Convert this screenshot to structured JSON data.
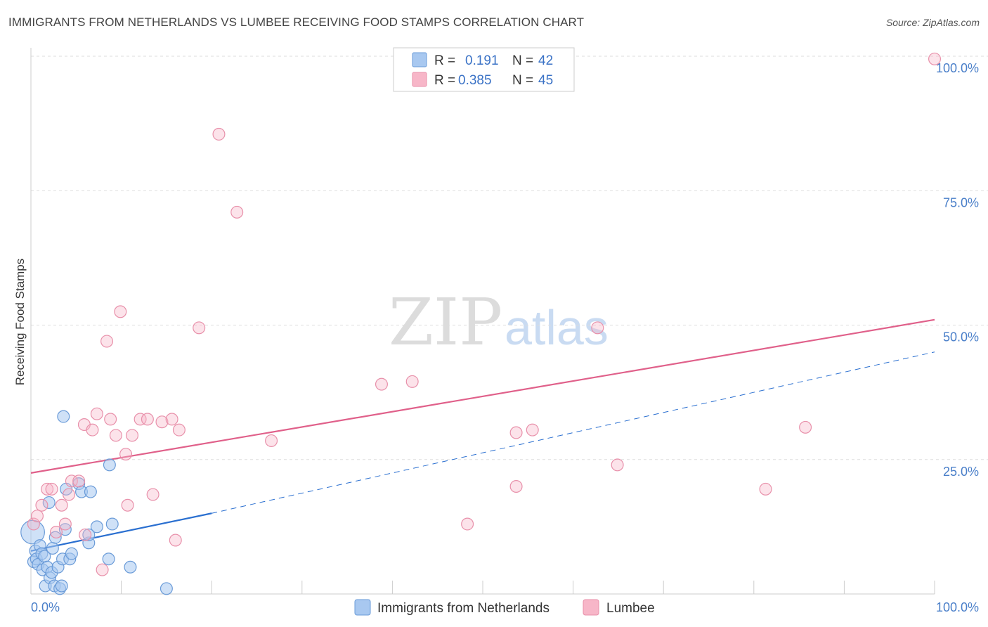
{
  "header": {
    "title": "IMMIGRANTS FROM NETHERLANDS VS LUMBEE RECEIVING FOOD STAMPS CORRELATION CHART",
    "source": "Source: ZipAtlas.com"
  },
  "watermark": {
    "zip": "ZIP",
    "atlas": "atlas"
  },
  "colors": {
    "blue_fill": "#a8c8f0",
    "blue_stroke": "#6a9bd8",
    "blue_line": "#2a6fd0",
    "pink_fill": "#f7b6c8",
    "pink_stroke": "#e890aa",
    "pink_line": "#e0608a",
    "grid": "#dddddd",
    "tick_text": "#4a7fc9"
  },
  "legend": {
    "rows": [
      {
        "r_label": "R =",
        "r_value": "0.191",
        "n_label": "N =",
        "n_value": "42",
        "series": "blue"
      },
      {
        "r_label": "R =",
        "r_value": "0.385",
        "n_label": "N =",
        "n_value": "45",
        "series": "pink"
      }
    ]
  },
  "chart_data": {
    "type": "scatter",
    "title": "IMMIGRANTS FROM NETHERLANDS VS LUMBEE RECEIVING FOOD STAMPS CORRELATION CHART",
    "xlabel": "",
    "ylabel": "Receiving Food Stamps",
    "xlim": [
      0,
      100
    ],
    "ylim": [
      0,
      100
    ],
    "x_tick_labels": [
      "0.0%",
      "100.0%"
    ],
    "y_ticks": [
      25,
      50,
      75,
      100
    ],
    "y_tick_labels": [
      "25.0%",
      "50.0%",
      "75.0%",
      "100.0%"
    ],
    "x_grid_ticks": [
      0,
      10,
      20,
      30,
      40,
      50,
      60,
      70,
      80,
      90,
      100
    ],
    "series": [
      {
        "name": "Immigrants from Netherlands",
        "color": "blue",
        "R": 0.191,
        "N": 42,
        "trend": {
          "x0": 0,
          "y0": 8.0,
          "x1": 20,
          "y1": 15.0,
          "dashed_to_x": 100,
          "dashed_to_y": 45.0
        },
        "points": [
          [
            0.2,
            11.5,
            24
          ],
          [
            0.3,
            6.0,
            12
          ],
          [
            0.5,
            8.0,
            12
          ],
          [
            0.6,
            6.5,
            12
          ],
          [
            0.8,
            5.5,
            12
          ],
          [
            1.0,
            9.0,
            12
          ],
          [
            1.2,
            7.5,
            12
          ],
          [
            1.3,
            4.5,
            12
          ],
          [
            1.5,
            7.0,
            12
          ],
          [
            1.6,
            1.5,
            12
          ],
          [
            1.8,
            5.0,
            12
          ],
          [
            2.0,
            17.0,
            12
          ],
          [
            2.1,
            3.0,
            12
          ],
          [
            2.3,
            4.0,
            12
          ],
          [
            2.4,
            8.5,
            12
          ],
          [
            2.6,
            1.5,
            12
          ],
          [
            2.7,
            10.5,
            12
          ],
          [
            3.0,
            5.0,
            12
          ],
          [
            3.2,
            1.0,
            12
          ],
          [
            3.4,
            1.5,
            12
          ],
          [
            3.5,
            6.5,
            12
          ],
          [
            3.6,
            33.0,
            12
          ],
          [
            3.8,
            12.0,
            12
          ],
          [
            3.9,
            19.5,
            12
          ],
          [
            4.3,
            6.5,
            12
          ],
          [
            4.5,
            7.5,
            12
          ],
          [
            5.3,
            20.5,
            12
          ],
          [
            5.6,
            19.0,
            12
          ],
          [
            6.4,
            9.5,
            12
          ],
          [
            6.6,
            19.0,
            12
          ],
          [
            7.3,
            12.5,
            12
          ],
          [
            8.6,
            6.5,
            12
          ],
          [
            8.7,
            24.0,
            12
          ],
          [
            9.0,
            13.0,
            12
          ],
          [
            11.0,
            5.0,
            12
          ],
          [
            15.0,
            1.0,
            12
          ],
          [
            6.4,
            11.0,
            12
          ]
        ]
      },
      {
        "name": "Lumbee",
        "color": "pink",
        "R": 0.385,
        "N": 45,
        "trend": {
          "x0": 0,
          "y0": 22.5,
          "x1": 100,
          "y1": 51.0
        },
        "points": [
          [
            0.3,
            13.0,
            12
          ],
          [
            0.7,
            14.5,
            12
          ],
          [
            1.2,
            16.5,
            12
          ],
          [
            1.8,
            19.5,
            12
          ],
          [
            2.3,
            19.5,
            12
          ],
          [
            2.8,
            11.5,
            12
          ],
          [
            3.4,
            16.5,
            12
          ],
          [
            3.8,
            13.0,
            12
          ],
          [
            4.2,
            18.5,
            12
          ],
          [
            4.5,
            21.0,
            12
          ],
          [
            5.3,
            21.0,
            12
          ],
          [
            5.9,
            31.5,
            12
          ],
          [
            6.0,
            11.0,
            12
          ],
          [
            6.8,
            30.5,
            12
          ],
          [
            7.3,
            33.5,
            12
          ],
          [
            7.9,
            4.5,
            12
          ],
          [
            8.4,
            47.0,
            12
          ],
          [
            8.8,
            32.5,
            12
          ],
          [
            9.4,
            29.5,
            12
          ],
          [
            9.9,
            52.5,
            12
          ],
          [
            10.5,
            26.0,
            12
          ],
          [
            10.7,
            16.5,
            12
          ],
          [
            11.2,
            29.5,
            12
          ],
          [
            12.1,
            32.5,
            12
          ],
          [
            12.9,
            32.5,
            12
          ],
          [
            13.5,
            18.5,
            12
          ],
          [
            14.5,
            32.0,
            12
          ],
          [
            15.6,
            32.5,
            12
          ],
          [
            16.0,
            10.0,
            12
          ],
          [
            16.4,
            30.5,
            12
          ],
          [
            18.6,
            49.5,
            12
          ],
          [
            20.8,
            85.5,
            12
          ],
          [
            22.8,
            71.0,
            12
          ],
          [
            26.6,
            28.5,
            12
          ],
          [
            38.8,
            39.0,
            12
          ],
          [
            42.2,
            39.5,
            12
          ],
          [
            48.3,
            13.0,
            12
          ],
          [
            53.7,
            30.0,
            12
          ],
          [
            53.7,
            20.0,
            12
          ],
          [
            55.5,
            30.5,
            12
          ],
          [
            62.7,
            49.5,
            12
          ],
          [
            64.9,
            24.0,
            12
          ],
          [
            81.3,
            19.5,
            12
          ],
          [
            85.7,
            31.0,
            12
          ],
          [
            100.0,
            99.5,
            12
          ]
        ]
      }
    ]
  },
  "bottom_legend": [
    {
      "label": "Immigrants from Netherlands",
      "series": "blue"
    },
    {
      "label": "Lumbee",
      "series": "pink"
    }
  ]
}
